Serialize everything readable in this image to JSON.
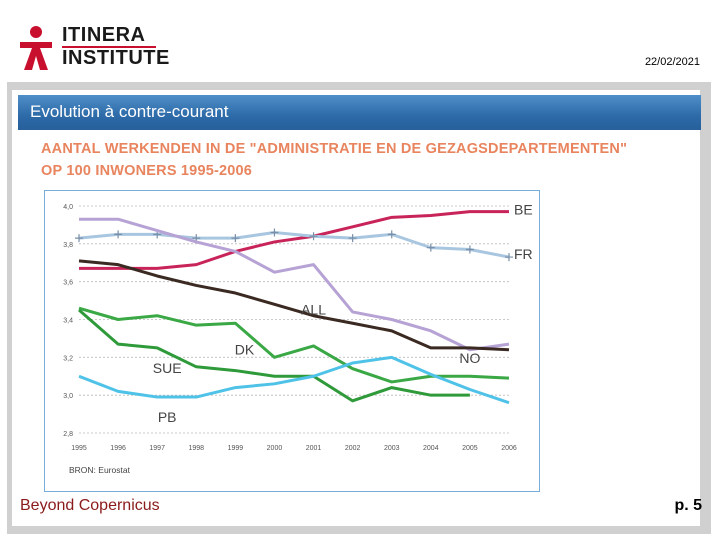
{
  "header": {
    "logo_line1": "ITINERA",
    "logo_line2": "INSTITUTE",
    "date": "22/02/2021"
  },
  "slide": {
    "title": "Evolution à contre-courant",
    "footer_left": "Beyond Copernicus",
    "footer_right": "p. 5"
  },
  "colors": {
    "logo_red": "#c8102e",
    "title_bar": "#2d6aa8",
    "chart_title": "#e8845e"
  },
  "chart_data": {
    "type": "line",
    "title_line1": "AANTAL WERKENDEN IN DE \"ADMINISTRATIE EN DE GEZAGSDEPARTEMENTEN\"",
    "title_line2": "OP 100 INWONERS 1995-2006",
    "source": "BRON: Eurostat",
    "x": [
      "1995",
      "1996",
      "1997",
      "1998",
      "1999",
      "2000",
      "2001",
      "2002",
      "2003",
      "2004",
      "2005",
      "2006"
    ],
    "ylim": [
      2.8,
      4.0
    ],
    "yticks": [
      "2,8",
      "3,0",
      "3,2",
      "3,4",
      "3,6",
      "3,8",
      "4,0"
    ],
    "grid": true,
    "series": [
      {
        "name": "BE",
        "color": "#c8245a",
        "values": [
          3.67,
          3.67,
          3.67,
          3.69,
          3.76,
          3.81,
          3.84,
          3.89,
          3.94,
          3.95,
          3.97,
          3.97
        ]
      },
      {
        "name": "FR",
        "color": "#a9c6e0",
        "marker": "plus",
        "values": [
          3.83,
          3.85,
          3.85,
          3.83,
          3.83,
          3.86,
          3.84,
          3.83,
          3.85,
          3.78,
          3.77,
          3.73
        ]
      },
      {
        "name": "NO",
        "color": "#b6a2d4",
        "values": [
          3.93,
          3.93,
          3.87,
          3.81,
          3.76,
          3.65,
          3.69,
          3.44,
          3.4,
          3.34,
          3.24,
          3.27
        ]
      },
      {
        "name": "ALL",
        "color": "#3a2a22",
        "values": [
          3.71,
          3.69,
          3.63,
          3.58,
          3.54,
          3.48,
          3.42,
          3.38,
          3.34,
          3.25,
          3.25,
          3.24
        ]
      },
      {
        "name": "DK",
        "color": "#3aa845",
        "values": [
          3.46,
          3.4,
          3.42,
          3.37,
          3.38,
          3.2,
          3.26,
          3.14,
          3.07,
          3.1,
          3.1,
          3.09
        ]
      },
      {
        "name": "SUE",
        "color": "#2f9a3a",
        "values": [
          3.45,
          3.27,
          3.25,
          3.15,
          3.13,
          3.1,
          3.1,
          2.97,
          3.04,
          3.0,
          3.0,
          null
        ]
      },
      {
        "name": "PB",
        "color": "#4fc2e8",
        "values": [
          3.1,
          3.02,
          2.99,
          2.99,
          3.04,
          3.06,
          3.1,
          3.17,
          3.2,
          3.11,
          3.03,
          2.96
        ]
      }
    ]
  }
}
